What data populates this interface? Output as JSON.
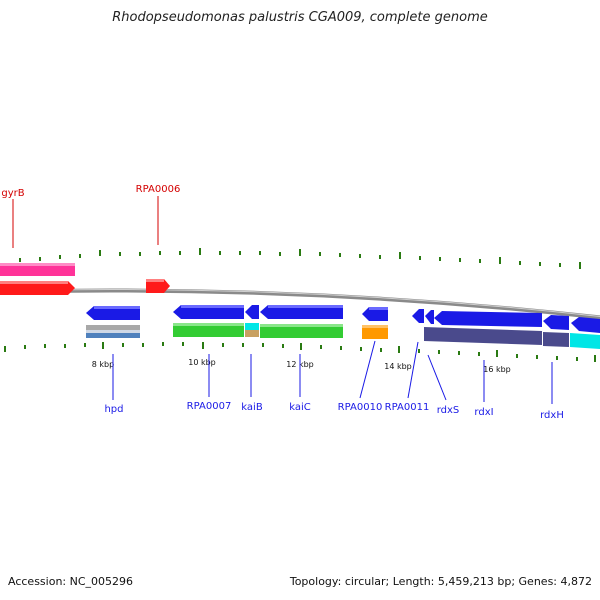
{
  "title": "Rhodopseudomonas palustris CGA009, complete genome",
  "footer": {
    "accession": "Accession: NC_005296",
    "topology": "Topology: circular; Length: 5,459,213 bp; Genes: 4,872"
  },
  "colors": {
    "backbone": "#8a8a8a",
    "tick": "#2a7a12",
    "forward_label": "#d40000",
    "reverse_label": "#1a1ae6",
    "forward_gene": "#ff1a1a",
    "forward_gene_pink": "#ff3399",
    "reverse_gene": "#1a1ae6",
    "cog_green": "#33cc33",
    "cog_cyan": "#00e6e6",
    "cog_orange": "#ff9900",
    "cog_slate": "#4a4a8c",
    "cog_gray": "#9a9a9a",
    "cog_tan": "#c8a060",
    "cog_steel": "#4f81bd"
  },
  "scale_labels": [
    "8 kbp",
    "10 kbp",
    "12 kbp",
    "14 kbp",
    "16 kbp"
  ],
  "forward_genes": [
    {
      "label": "gyrB",
      "color": "#ff3399"
    },
    {
      "label": "RPA0006",
      "color": "#ff1a1a"
    }
  ],
  "reverse_genes": [
    {
      "label": "hpd"
    },
    {
      "label": "RPA0007"
    },
    {
      "label": "kaiB"
    },
    {
      "label": "kaiC"
    },
    {
      "label": "RPA0010"
    },
    {
      "label": "RPA0011"
    },
    {
      "label": "rdxS"
    },
    {
      "label": "rdxI"
    },
    {
      "label": "rdxH"
    }
  ]
}
